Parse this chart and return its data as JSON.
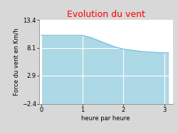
{
  "title": "Evolution du vent",
  "title_color": "#ff0000",
  "xlabel": "heure par heure",
  "ylabel": "Force du vent en Km/h",
  "yticks": [
    -2.4,
    2.9,
    8.1,
    13.4
  ],
  "xticks": [
    0,
    1,
    2,
    3
  ],
  "xlim": [
    -0.05,
    3.2
  ],
  "ylim": [
    -2.4,
    13.4
  ],
  "x": [
    0,
    0.1,
    0.2,
    0.3,
    0.4,
    0.5,
    0.6,
    0.7,
    0.8,
    0.9,
    1.0,
    1.1,
    1.2,
    1.3,
    1.4,
    1.5,
    1.6,
    1.7,
    1.8,
    1.9,
    2.0,
    2.1,
    2.2,
    2.3,
    2.4,
    2.5,
    2.6,
    2.7,
    2.8,
    2.9,
    3.0,
    3.1
  ],
  "y": [
    10.5,
    10.5,
    10.5,
    10.5,
    10.5,
    10.5,
    10.5,
    10.5,
    10.5,
    10.5,
    10.5,
    10.3,
    10.1,
    9.8,
    9.5,
    9.2,
    8.9,
    8.6,
    8.3,
    8.1,
    7.9,
    7.8,
    7.7,
    7.6,
    7.5,
    7.4,
    7.4,
    7.3,
    7.3,
    7.2,
    7.2,
    7.2
  ],
  "fill_color": "#add8e6",
  "fill_alpha": 1.0,
  "line_color": "#5bbcd6",
  "line_width": 0.8,
  "fig_bg_color": "#d8d8d8",
  "plot_bg_color": "#ffffff",
  "grid_color": "#ffffff",
  "title_fontsize": 9,
  "label_fontsize": 6,
  "tick_fontsize": 6,
  "ylabel_fontsize": 6
}
